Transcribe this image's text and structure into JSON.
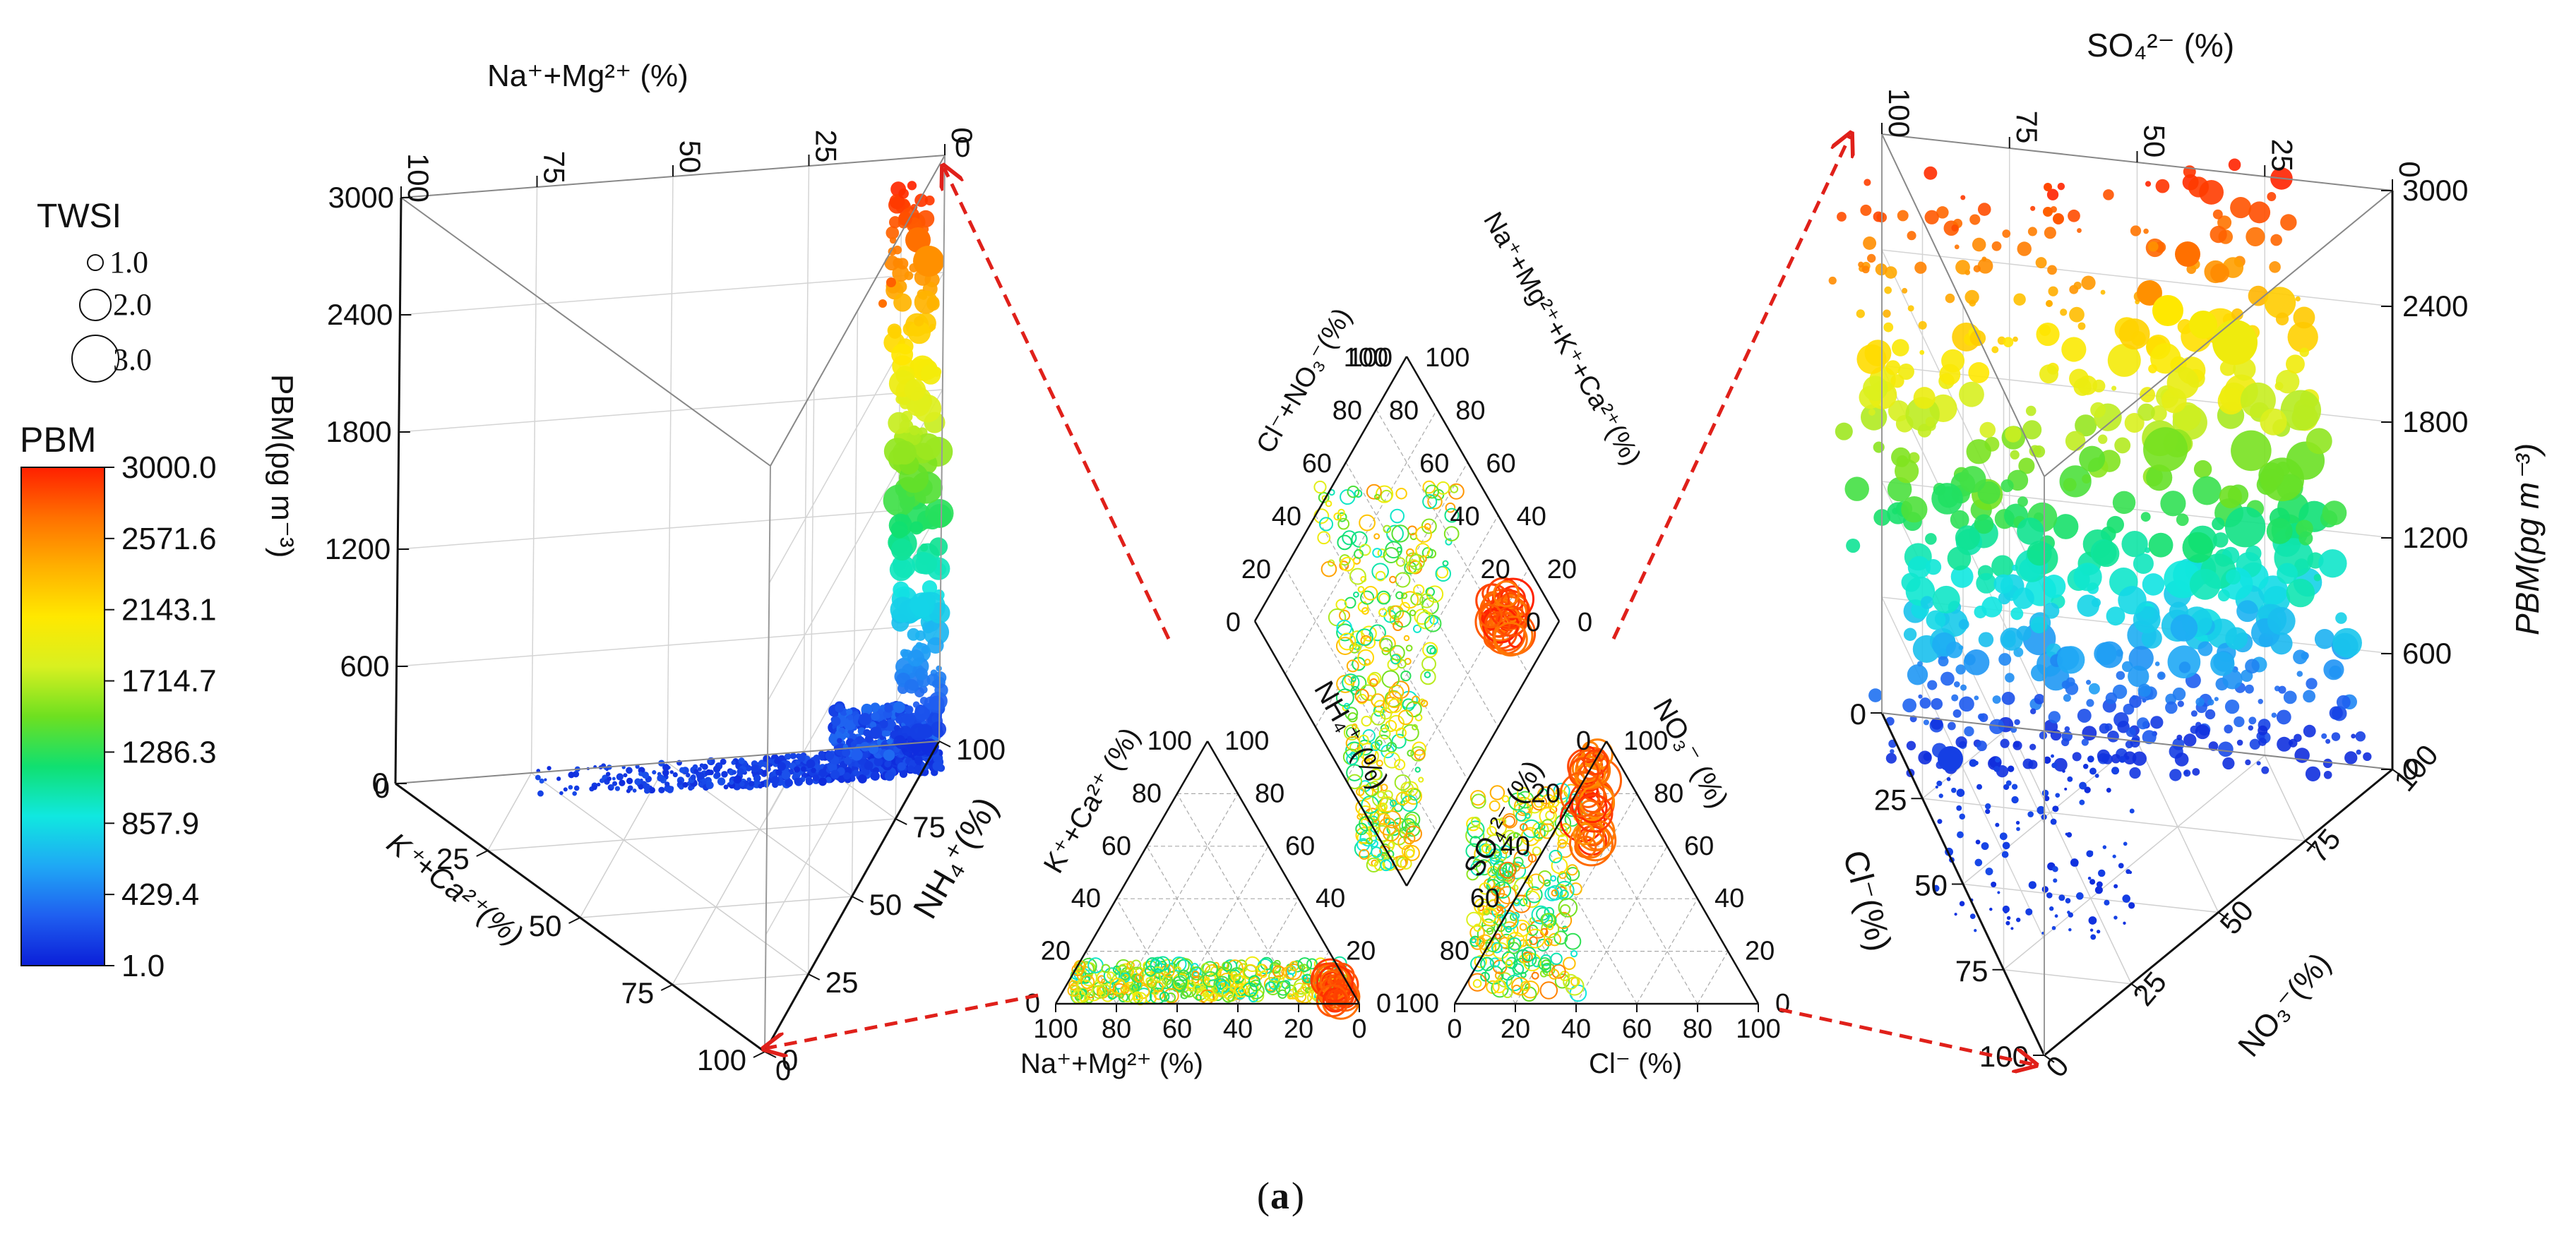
{
  "caption_letter": "a",
  "caption_open": "(",
  "caption_close": ")",
  "legend": {
    "size_title": "TWSI",
    "size_items": [
      "1.0",
      "2.0",
      "3.0"
    ],
    "color_title": "PBM",
    "color_ticks": [
      "3000.0",
      "2571.6",
      "2143.1",
      "1714.7",
      "1286.3",
      "857.9",
      "429.4",
      "1.0"
    ],
    "color_stops": [
      "#0b1fd8",
      "#1f5ff0",
      "#1fa8f5",
      "#10e8e0",
      "#10e070",
      "#6ee020",
      "#d8f020",
      "#ffe800",
      "#ffb000",
      "#ff7000",
      "#ff2000"
    ]
  },
  "chart_data": [
    {
      "id": "left-3d-ternary",
      "type": "scatter",
      "description_axes": "3D ternary prism",
      "top_axis_label": "Na⁺+Mg²⁺ (%)",
      "top_ticks": [
        "100",
        "75",
        "50",
        "25",
        "0"
      ],
      "z_axis_label": "PBM(pg m⁻³)",
      "z_ticks": [
        "3000",
        "2400",
        "1800",
        "1200",
        "600",
        "0"
      ],
      "zlim": [
        0,
        3000
      ],
      "left_axis_label": "K⁺+Ca²⁺(%)",
      "left_ticks": [
        "25",
        "50",
        "75",
        "100"
      ],
      "right_axis_label": "NH₄⁺(%)",
      "right_ticks": [
        "100",
        "75",
        "50",
        "25",
        "0"
      ],
      "extra_ticks": [
        "0",
        "0",
        "0"
      ]
    },
    {
      "id": "piper-cation-triangle",
      "type": "scatter",
      "xlabel": "Na⁺+Mg²⁺ (%)",
      "x_ticks": [
        "100",
        "80",
        "60",
        "40",
        "20",
        "0"
      ],
      "left_label": "K⁺+Ca²⁺ (%)",
      "left_ticks": [
        "0",
        "20",
        "40",
        "60",
        "80",
        "100"
      ],
      "right_label": "NH₄⁺ (%)",
      "right_ticks": [
        "100",
        "80",
        "60",
        "40",
        "20",
        "0"
      ]
    },
    {
      "id": "piper-diamond",
      "type": "scatter",
      "left_label": "Cl⁻+NO₃⁻(%)",
      "left_ticks": [
        "100",
        "80",
        "60",
        "40",
        "20",
        "0"
      ],
      "right_label": "Na⁺+Mg²⁺+K⁺+Ca²⁺(%)",
      "right_ticks": [
        "100",
        "80",
        "60",
        "40",
        "20",
        "0"
      ]
    },
    {
      "id": "piper-anion-triangle",
      "type": "scatter",
      "xlabel": "Cl⁻ (%)",
      "x_ticks": [
        "0",
        "20",
        "40",
        "60",
        "80",
        "100"
      ],
      "left_label": "SO₄²⁻ (%)",
      "left_ticks": [
        "100",
        "80",
        "60",
        "40",
        "20",
        "0"
      ],
      "right_label": "NO₃⁻ (%)",
      "right_ticks": [
        "100",
        "80",
        "60",
        "40",
        "20",
        "0"
      ]
    },
    {
      "id": "right-3d-ternary",
      "type": "scatter",
      "top_axis_label": "SO₄²⁻ (%)",
      "top_ticks": [
        "100",
        "75",
        "50",
        "25",
        "0"
      ],
      "z_axis_label": "PBM(pg m⁻³)",
      "z_ticks": [
        "3000",
        "2400",
        "1800",
        "1200",
        "600",
        "0"
      ],
      "zlim": [
        0,
        3000
      ],
      "left_axis_label": "Cl⁻(%)",
      "left_ticks": [
        "0",
        "25",
        "50",
        "75",
        "100"
      ],
      "right_axis_label": "NO₃⁻(%)",
      "right_ticks": [
        "100",
        "75",
        "50",
        "25",
        "0"
      ]
    }
  ]
}
